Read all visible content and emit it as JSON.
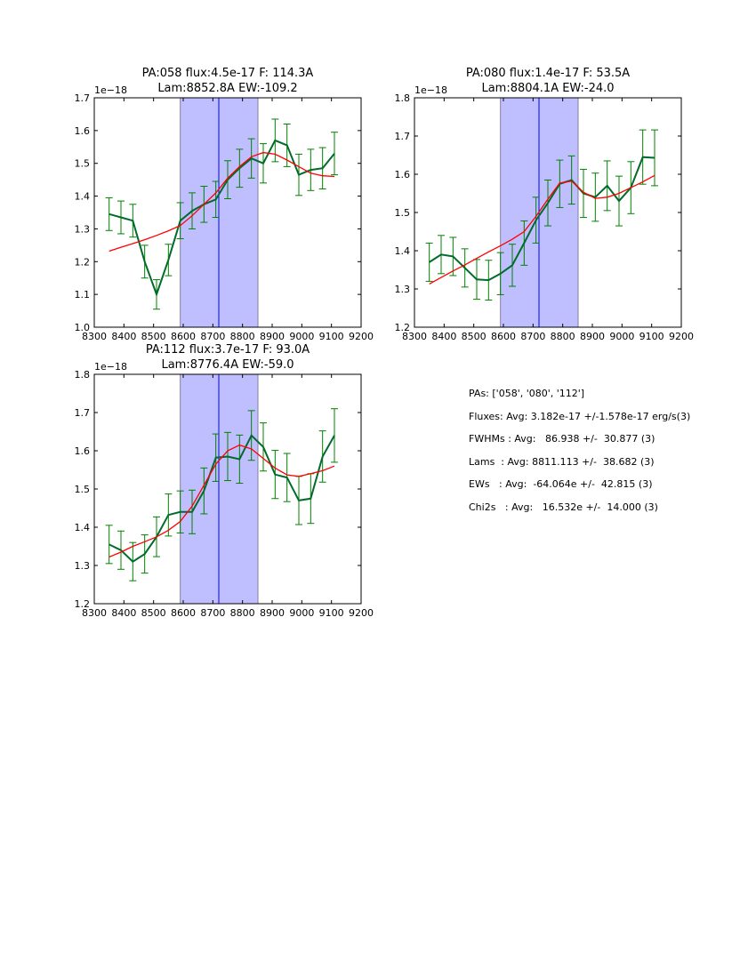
{
  "chart_data": [
    {
      "type": "line",
      "title_line1": "PA:058 flux:4.5e-17 F: 114.3A",
      "title_line2": "Lam:8852.8A EW:-109.2",
      "offset_label": "1e−18",
      "xlim": [
        8300,
        9200
      ],
      "ylim": [
        1.0,
        1.7
      ],
      "xticks": [
        "8300",
        "8400",
        "8500",
        "8600",
        "8700",
        "8800",
        "8900",
        "9000",
        "9100",
        "9200"
      ],
      "yticks": [
        "1.0",
        "1.1",
        "1.2",
        "1.3",
        "1.4",
        "1.5",
        "1.6",
        "1.7"
      ],
      "band": [
        8590,
        8852
      ],
      "line_center": 8720,
      "x": [
        8350,
        8390,
        8430,
        8470,
        8510,
        8550,
        8590,
        8630,
        8670,
        8710,
        8750,
        8790,
        8830,
        8870,
        8910,
        8950,
        8990,
        9030,
        9070,
        9110
      ],
      "series": [
        {
          "name": "data",
          "color": "#006b2a",
          "values": [
            1.345,
            1.335,
            1.325,
            1.2,
            1.1,
            1.205,
            1.325,
            1.355,
            1.375,
            1.39,
            1.45,
            1.485,
            1.515,
            1.5,
            1.57,
            1.555,
            1.465,
            1.48,
            1.485,
            1.53
          ],
          "errors": [
            0.05,
            0.05,
            0.05,
            0.05,
            0.045,
            0.048,
            0.055,
            0.055,
            0.055,
            0.055,
            0.058,
            0.058,
            0.06,
            0.06,
            0.065,
            0.065,
            0.063,
            0.063,
            0.063,
            0.065
          ],
          "error_color": "#008000"
        },
        {
          "name": "fit",
          "color": "#ff0000",
          "values": [
            1.232,
            1.244,
            1.255,
            1.267,
            1.28,
            1.294,
            1.31,
            1.34,
            1.375,
            1.41,
            1.455,
            1.49,
            1.52,
            1.533,
            1.528,
            1.51,
            1.49,
            1.47,
            1.462,
            1.46
          ]
        }
      ]
    },
    {
      "type": "line",
      "title_line1": "PA:080 flux:1.4e-17 F: 53.5A",
      "title_line2": "Lam:8804.1A EW:-24.0",
      "offset_label": "1e−18",
      "xlim": [
        8300,
        9200
      ],
      "ylim": [
        1.2,
        1.8
      ],
      "xticks": [
        "8300",
        "8400",
        "8500",
        "8600",
        "8700",
        "8800",
        "8900",
        "9000",
        "9100",
        "9200"
      ],
      "yticks": [
        "1.2",
        "1.3",
        "1.4",
        "1.5",
        "1.6",
        "1.7",
        "1.8"
      ],
      "band": [
        8590,
        8852
      ],
      "line_center": 8720,
      "x": [
        8350,
        8390,
        8430,
        8470,
        8510,
        8550,
        8590,
        8630,
        8670,
        8710,
        8750,
        8790,
        8830,
        8870,
        8910,
        8950,
        8990,
        9030,
        9070,
        9110
      ],
      "series": [
        {
          "name": "data",
          "color": "#006b2a",
          "values": [
            1.37,
            1.39,
            1.385,
            1.355,
            1.325,
            1.323,
            1.34,
            1.362,
            1.42,
            1.48,
            1.525,
            1.575,
            1.585,
            1.55,
            1.54,
            1.57,
            1.53,
            1.565,
            1.645,
            1.643
          ],
          "errors": [
            0.05,
            0.05,
            0.05,
            0.05,
            0.052,
            0.052,
            0.055,
            0.055,
            0.058,
            0.06,
            0.06,
            0.062,
            0.063,
            0.063,
            0.063,
            0.065,
            0.065,
            0.068,
            0.071,
            0.073
          ],
          "error_color": "#008000"
        },
        {
          "name": "fit",
          "color": "#ff0000",
          "values": [
            1.313,
            1.33,
            1.347,
            1.363,
            1.38,
            1.397,
            1.413,
            1.43,
            1.45,
            1.49,
            1.535,
            1.577,
            1.582,
            1.553,
            1.537,
            1.54,
            1.55,
            1.565,
            1.58,
            1.597
          ]
        }
      ]
    },
    {
      "type": "line",
      "title_line1": "PA:112 flux:3.7e-17 F: 93.0A",
      "title_line2": "Lam:8776.4A EW:-59.0",
      "offset_label": "1e−18",
      "xlim": [
        8300,
        9200
      ],
      "ylim": [
        1.2,
        1.8
      ],
      "xticks": [
        "8300",
        "8400",
        "8500",
        "8600",
        "8700",
        "8800",
        "8900",
        "9000",
        "9100",
        "9200"
      ],
      "yticks": [
        "1.2",
        "1.3",
        "1.4",
        "1.5",
        "1.6",
        "1.7",
        "1.8"
      ],
      "band": [
        8590,
        8852
      ],
      "line_center": 8720,
      "x": [
        8350,
        8390,
        8430,
        8470,
        8510,
        8550,
        8590,
        8630,
        8670,
        8710,
        8750,
        8790,
        8830,
        8870,
        8910,
        8950,
        8990,
        9030,
        9070,
        9110
      ],
      "series": [
        {
          "name": "data",
          "color": "#006b2a",
          "values": [
            1.355,
            1.34,
            1.31,
            1.33,
            1.375,
            1.432,
            1.44,
            1.44,
            1.495,
            1.582,
            1.585,
            1.578,
            1.64,
            1.61,
            1.538,
            1.53,
            1.47,
            1.475,
            1.585,
            1.64
          ],
          "errors": [
            0.05,
            0.05,
            0.05,
            0.05,
            0.052,
            0.055,
            0.055,
            0.057,
            0.06,
            0.062,
            0.063,
            0.063,
            0.065,
            0.063,
            0.063,
            0.063,
            0.063,
            0.065,
            0.067,
            0.07
          ],
          "error_color": "#008000"
        },
        {
          "name": "fit",
          "color": "#ff0000",
          "values": [
            1.322,
            1.335,
            1.35,
            1.362,
            1.375,
            1.392,
            1.415,
            1.455,
            1.51,
            1.565,
            1.6,
            1.615,
            1.605,
            1.58,
            1.555,
            1.537,
            1.533,
            1.54,
            1.548,
            1.56
          ]
        }
      ]
    }
  ],
  "stats": [
    "PAs: ['058', '080', '112']",
    "Fluxes: Avg: 3.182e-17 +/-1.578e-17 erg/s(3)",
    "FWHMs : Avg:   86.938 +/-  30.877 (3)",
    "Lams  : Avg: 8811.113 +/-  38.682 (3)",
    "EWs   : Avg:  -64.064e +/-  42.815 (3)",
    "Chi2s   : Avg:   16.532e +/-  14.000 (3)"
  ],
  "colors": {
    "band": "#bfbfff",
    "band_edge": "#8080a0",
    "center_line": "#0000ff"
  }
}
